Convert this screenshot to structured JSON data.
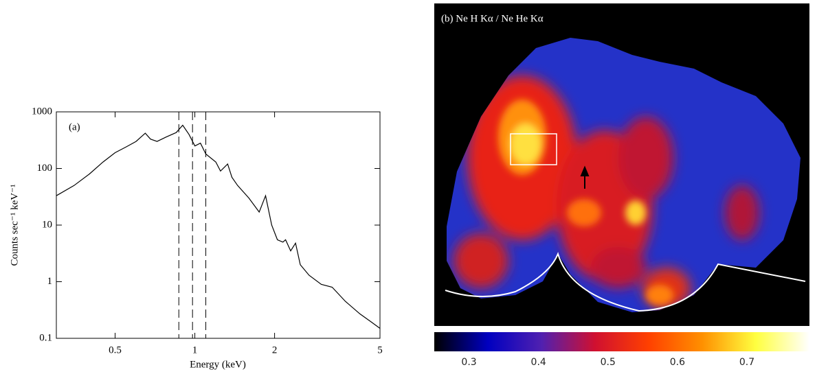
{
  "chart_data": [
    {
      "type": "line",
      "panel_label": "(a)",
      "x_label": "Energy (keV)",
      "y_label": "Counts sec⁻¹ keV⁻¹",
      "log_x": true,
      "log_y": true,
      "color": "#000000",
      "x": [
        0.3,
        0.35,
        0.4,
        0.45,
        0.5,
        0.55,
        0.6,
        0.65,
        0.68,
        0.72,
        0.78,
        0.85,
        0.9,
        0.95,
        1.0,
        1.05,
        1.1,
        1.2,
        1.25,
        1.33,
        1.38,
        1.45,
        1.6,
        1.75,
        1.85,
        1.95,
        2.05,
        2.15,
        2.2,
        2.3,
        2.4,
        2.5,
        2.7,
        3.0,
        3.3,
        3.7,
        4.2,
        4.6,
        5.0
      ],
      "values": [
        33,
        50,
        80,
        130,
        190,
        240,
        300,
        420,
        330,
        300,
        360,
        430,
        580,
        400,
        250,
        280,
        180,
        130,
        90,
        120,
        70,
        50,
        30,
        17,
        33,
        10,
        5.5,
        5,
        5.5,
        3.5,
        4.8,
        2,
        1.3,
        0.9,
        0.8,
        0.45,
        0.27,
        0.2,
        0.15
      ],
      "vlines": [
        0.87,
        0.98,
        1.1
      ],
      "xlim": [
        0.3,
        5
      ],
      "ylim": [
        0.1,
        1000
      ],
      "xticks": [
        0.5,
        1,
        2,
        5
      ],
      "yticks": [
        0.1,
        1,
        10,
        100,
        1000
      ]
    },
    {
      "type": "heatmap",
      "title": "(b) Ne H Kα / Ne He Kα",
      "colors": [
        "#000000",
        "#0000c0",
        "#5020b0",
        "#d01030",
        "#ff4000",
        "#ff9000",
        "#ffff40",
        "#ffffff"
      ],
      "xlim": [
        0.25,
        0.79
      ],
      "xticks": [
        0.3,
        0.4,
        0.5,
        0.6,
        0.7
      ]
    }
  ]
}
